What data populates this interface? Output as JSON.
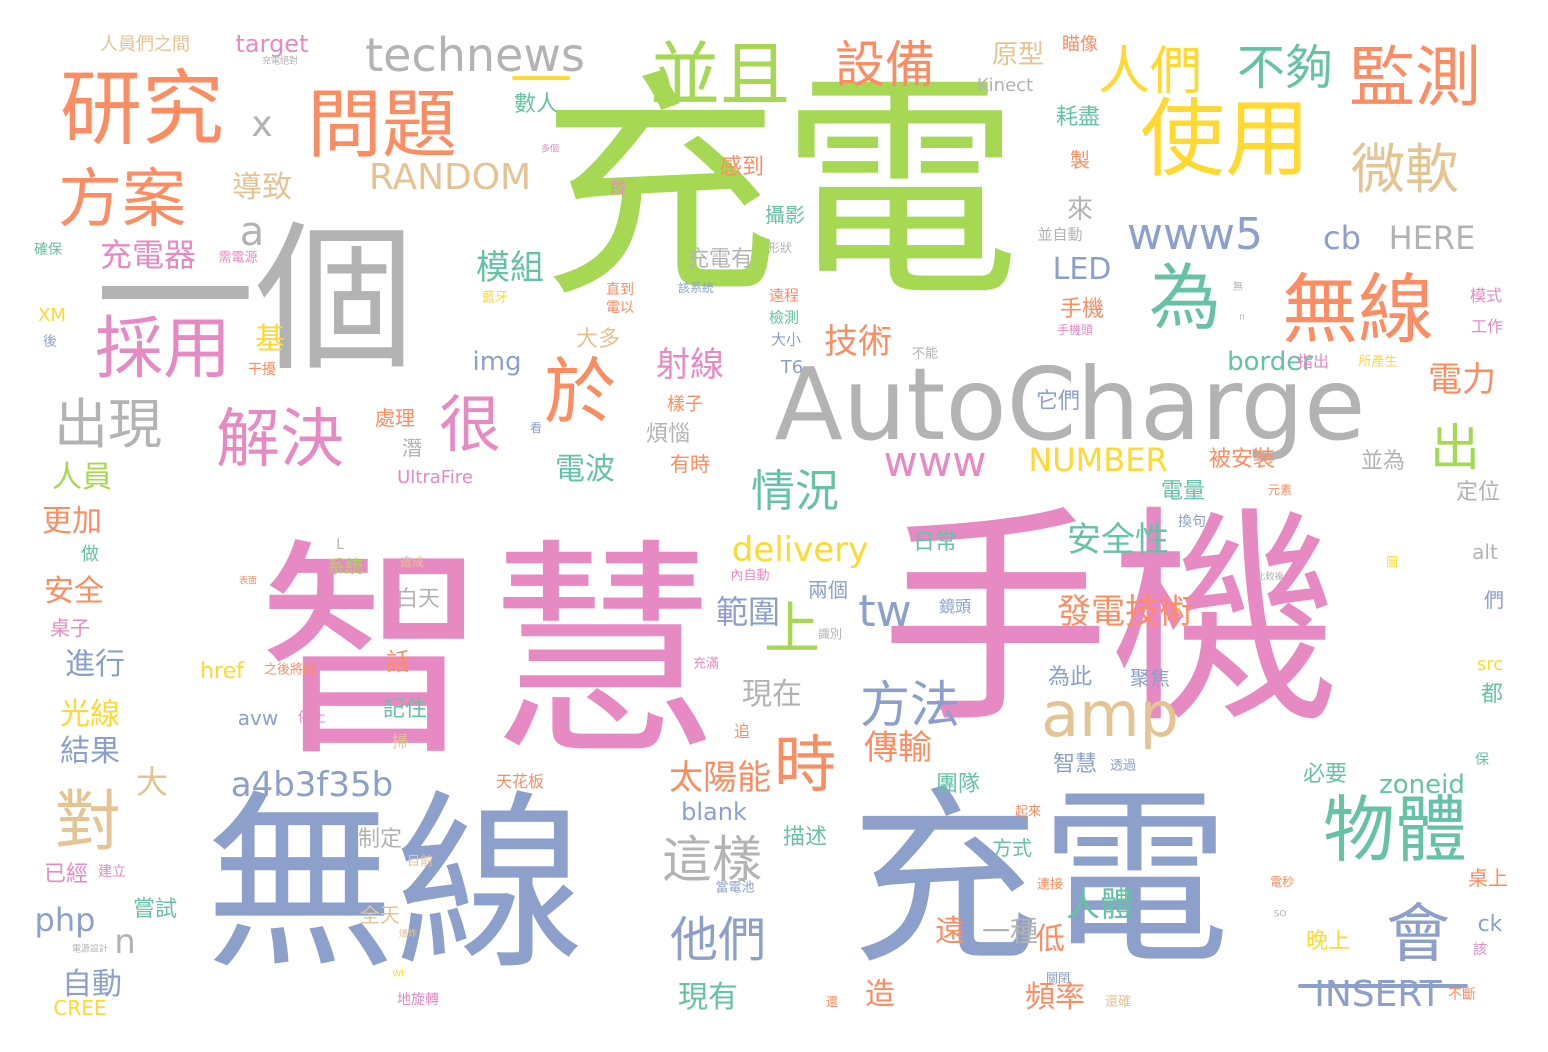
{
  "palette": {
    "green": "#a6d854",
    "pink": "#e78ac3",
    "blue": "#8da0cb",
    "grey": "#b3b3b3",
    "orange": "#fc8d62",
    "yellow": "#ffd92f",
    "teal": "#66c2a5",
    "tan": "#e5c494"
  },
  "words": [
    {
      "id": "w1",
      "text": "充電",
      "color": "green"
    },
    {
      "id": "w2",
      "text": "智慧",
      "color": "pink"
    },
    {
      "id": "w3",
      "text": "手機",
      "color": "pink"
    },
    {
      "id": "w4",
      "text": "無線",
      "color": "blue"
    },
    {
      "id": "w5",
      "text": "充電",
      "color": "blue"
    },
    {
      "id": "w6",
      "text": "一個",
      "color": "grey"
    },
    {
      "id": "w7",
      "text": "AutoCharge",
      "color": "grey"
    },
    {
      "id": "w8",
      "text": "研究",
      "color": "orange"
    },
    {
      "id": "w9",
      "text": "問題",
      "color": "orange"
    },
    {
      "id": "w10",
      "text": "使用",
      "color": "yellow"
    },
    {
      "id": "w11",
      "text": "並且",
      "color": "green"
    },
    {
      "id": "w12",
      "text": "監測",
      "color": "orange"
    },
    {
      "id": "w13",
      "text": "無線",
      "color": "orange"
    },
    {
      "id": "w14",
      "text": "方案",
      "color": "orange"
    },
    {
      "id": "w15",
      "text": "採用",
      "color": "pink"
    },
    {
      "id": "w16",
      "text": "解決",
      "color": "pink"
    },
    {
      "id": "w17",
      "text": "technews",
      "color": "grey"
    },
    {
      "id": "w18",
      "text": "設備",
      "color": "orange"
    },
    {
      "id": "w19",
      "text": "人們",
      "color": "yellow"
    },
    {
      "id": "w20",
      "text": "不夠",
      "color": "teal"
    },
    {
      "id": "w21",
      "text": "微軟",
      "color": "tan"
    },
    {
      "id": "w22",
      "text": "為",
      "color": "teal"
    },
    {
      "id": "w23",
      "text": "於",
      "color": "orange"
    },
    {
      "id": "w24",
      "text": "很",
      "color": "pink"
    },
    {
      "id": "w25",
      "text": "出現",
      "color": "grey"
    },
    {
      "id": "w26",
      "text": "amp",
      "color": "tan"
    },
    {
      "id": "w27",
      "text": "物體",
      "color": "teal"
    },
    {
      "id": "w28",
      "text": "會",
      "color": "blue"
    },
    {
      "id": "w29",
      "text": "對",
      "color": "tan"
    },
    {
      "id": "w30",
      "text": "時",
      "color": "orange"
    },
    {
      "id": "w31",
      "text": "方法",
      "color": "blue"
    },
    {
      "id": "w32",
      "text": "這樣",
      "color": "grey"
    },
    {
      "id": "w33",
      "text": "他們",
      "color": "blue"
    },
    {
      "id": "w34",
      "text": "情況",
      "color": "teal"
    },
    {
      "id": "w35",
      "text": "www5",
      "color": "blue"
    },
    {
      "id": "w36",
      "text": "www",
      "color": "pink"
    },
    {
      "id": "w37",
      "text": "RANDOM",
      "color": "tan"
    },
    {
      "id": "w38",
      "text": "a4b3f35b",
      "color": "blue"
    },
    {
      "id": "w39",
      "text": "delivery",
      "color": "yellow"
    },
    {
      "id": "w40",
      "text": "NUMBER",
      "color": "yellow"
    },
    {
      "id": "w41",
      "text": "INSERT",
      "color": "blue"
    },
    {
      "id": "w42",
      "text": "tw",
      "color": "blue"
    },
    {
      "id": "w43",
      "text": "上",
      "color": "green"
    },
    {
      "id": "w44",
      "text": "出",
      "color": "green"
    },
    {
      "id": "w45",
      "text": "cb",
      "color": "blue"
    },
    {
      "id": "w46",
      "text": "HERE",
      "color": "grey"
    },
    {
      "id": "w47",
      "text": "充電器",
      "color": "pink"
    },
    {
      "id": "w48",
      "text": "模組",
      "color": "teal"
    },
    {
      "id": "w49",
      "text": "LED",
      "color": "blue"
    },
    {
      "id": "w50",
      "text": "技術",
      "color": "orange"
    },
    {
      "id": "w51",
      "text": "射線",
      "color": "pink"
    },
    {
      "id": "w52",
      "text": "安全性",
      "color": "teal"
    },
    {
      "id": "w53",
      "text": "發電技術",
      "color": "orange"
    },
    {
      "id": "w54",
      "text": "範圍",
      "color": "blue"
    },
    {
      "id": "w55",
      "text": "太陽能",
      "color": "orange"
    },
    {
      "id": "w56",
      "text": "傳輸",
      "color": "orange"
    },
    {
      "id": "w57",
      "text": "人體",
      "color": "teal"
    },
    {
      "id": "w58",
      "text": "電力",
      "color": "orange"
    },
    {
      "id": "w59",
      "text": "導致",
      "color": "tan"
    },
    {
      "id": "w60",
      "text": "基",
      "color": "yellow"
    },
    {
      "id": "w61",
      "text": "人員",
      "color": "green"
    },
    {
      "id": "w62",
      "text": "更加",
      "color": "orange"
    },
    {
      "id": "w63",
      "text": "安全",
      "color": "orange"
    },
    {
      "id": "w64",
      "text": "進行",
      "color": "blue"
    },
    {
      "id": "w65",
      "text": "光線",
      "color": "yellow"
    },
    {
      "id": "w66",
      "text": "結果",
      "color": "blue"
    },
    {
      "id": "w67",
      "text": "php",
      "color": "blue"
    },
    {
      "id": "w68",
      "text": "自動",
      "color": "blue"
    },
    {
      "id": "w69",
      "text": "現有",
      "color": "teal"
    },
    {
      "id": "w70",
      "text": "頻率",
      "color": "orange"
    },
    {
      "id": "w71",
      "text": "低",
      "color": "orange"
    },
    {
      "id": "w72",
      "text": "遠",
      "color": "orange"
    },
    {
      "id": "w73",
      "text": "一種",
      "color": "grey"
    },
    {
      "id": "w74",
      "text": "造",
      "color": "orange"
    },
    {
      "id": "w75",
      "text": "img",
      "color": "blue"
    },
    {
      "id": "w76",
      "text": "a",
      "color": "grey"
    },
    {
      "id": "w77",
      "text": "x",
      "color": "grey"
    },
    {
      "id": "w78",
      "text": "n",
      "color": "grey"
    },
    {
      "id": "w79",
      "text": "大",
      "color": "tan"
    },
    {
      "id": "w80",
      "text": "電波",
      "color": "teal"
    },
    {
      "id": "w81",
      "text": "現在",
      "color": "grey"
    },
    {
      "id": "w82",
      "text": "border",
      "color": "teal"
    },
    {
      "id": "w83",
      "text": "zoneid",
      "color": "teal"
    },
    {
      "id": "w84",
      "text": "blank",
      "color": "blue"
    },
    {
      "id": "w85",
      "text": "target",
      "color": "pink"
    },
    {
      "id": "w86",
      "text": "Kinect",
      "color": "grey"
    },
    {
      "id": "w87",
      "text": "原型",
      "color": "tan"
    },
    {
      "id": "w88",
      "text": "數人",
      "color": "teal"
    },
    {
      "id": "w89",
      "text": "耗盡",
      "color": "teal"
    },
    {
      "id": "w90",
      "text": "感到",
      "color": "orange"
    },
    {
      "id": "w91",
      "text": "攝影",
      "color": "teal"
    },
    {
      "id": "w92",
      "text": "來",
      "color": "grey"
    },
    {
      "id": "w93",
      "text": "手機",
      "color": "orange"
    },
    {
      "id": "w94",
      "text": "充電有",
      "color": "grey"
    },
    {
      "id": "w95",
      "text": "大多",
      "color": "tan"
    },
    {
      "id": "w96",
      "text": "它們",
      "color": "blue"
    },
    {
      "id": "w97",
      "text": "處理",
      "color": "orange"
    },
    {
      "id": "w98",
      "text": "煩惱",
      "color": "grey"
    },
    {
      "id": "w99",
      "text": "有時",
      "color": "orange"
    },
    {
      "id": "w100",
      "text": "被安裝",
      "color": "orange"
    },
    {
      "id": "w101",
      "text": "並為",
      "color": "grey"
    },
    {
      "id": "w102",
      "text": "定位",
      "color": "grey"
    },
    {
      "id": "w103",
      "text": "電量",
      "color": "teal"
    },
    {
      "id": "w104",
      "text": "日常",
      "color": "teal"
    },
    {
      "id": "w105",
      "text": "兩個",
      "color": "blue"
    },
    {
      "id": "w106",
      "text": "白天",
      "color": "grey"
    },
    {
      "id": "w107",
      "text": "話",
      "color": "orange"
    },
    {
      "id": "w108",
      "text": "記住",
      "color": "teal"
    },
    {
      "id": "w109",
      "text": "為此",
      "color": "blue"
    },
    {
      "id": "w110",
      "text": "聚焦",
      "color": "blue"
    },
    {
      "id": "w111",
      "text": "智慧",
      "color": "blue"
    },
    {
      "id": "w112",
      "text": "團隊",
      "color": "teal"
    },
    {
      "id": "w113",
      "text": "必要",
      "color": "teal"
    },
    {
      "id": "w114",
      "text": "描述",
      "color": "teal"
    },
    {
      "id": "w115",
      "text": "制定",
      "color": "grey"
    },
    {
      "id": "w116",
      "text": "方式",
      "color": "teal"
    },
    {
      "id": "w117",
      "text": "已經",
      "color": "pink"
    },
    {
      "id": "w118",
      "text": "嘗試",
      "color": "teal"
    },
    {
      "id": "w119",
      "text": "全天",
      "color": "tan"
    },
    {
      "id": "w120",
      "text": "晚上",
      "color": "yellow"
    },
    {
      "id": "w121",
      "text": "桌上",
      "color": "orange"
    },
    {
      "id": "w122",
      "text": "ck",
      "color": "blue"
    },
    {
      "id": "w123",
      "text": "CREE",
      "color": "yellow"
    },
    {
      "id": "w124",
      "text": "href",
      "color": "yellow"
    },
    {
      "id": "w125",
      "text": "avw",
      "color": "blue"
    },
    {
      "id": "w126",
      "text": "UltraFire",
      "color": "pink"
    },
    {
      "id": "w127",
      "text": "T6",
      "color": "blue"
    },
    {
      "id": "w128",
      "text": "XM",
      "color": "yellow"
    },
    {
      "id": "w129",
      "text": "alt",
      "color": "grey"
    },
    {
      "id": "w130",
      "text": "src",
      "color": "yellow"
    },
    {
      "id": "w131",
      "text": "都",
      "color": "teal"
    },
    {
      "id": "w132",
      "text": "們",
      "color": "blue"
    },
    {
      "id": "w133",
      "text": "人員們之間",
      "color": "tan"
    },
    {
      "id": "w134",
      "text": "瞄像",
      "color": "orange"
    },
    {
      "id": "w135",
      "text": "製",
      "color": "orange"
    },
    {
      "id": "w136",
      "text": "並自動",
      "color": "grey"
    },
    {
      "id": "w137",
      "text": "模式",
      "color": "pink"
    },
    {
      "id": "w138",
      "text": "工作",
      "color": "pink"
    },
    {
      "id": "w139",
      "text": "遠程",
      "color": "orange"
    },
    {
      "id": "w140",
      "text": "檢測",
      "color": "teal"
    },
    {
      "id": "w141",
      "text": "大小",
      "color": "blue"
    },
    {
      "id": "w142",
      "text": "指出",
      "color": "pink"
    },
    {
      "id": "w143",
      "text": "所產生",
      "color": "yellow"
    },
    {
      "id": "w144",
      "text": "樣子",
      "color": "orange"
    },
    {
      "id": "w145",
      "text": "潛",
      "color": "grey"
    },
    {
      "id": "w146",
      "text": "做",
      "color": "teal"
    },
    {
      "id": "w147",
      "text": "系統",
      "color": "green"
    },
    {
      "id": "w148",
      "text": "桌子",
      "color": "pink"
    },
    {
      "id": "w149",
      "text": "後",
      "color": "blue"
    },
    {
      "id": "w150",
      "text": "確保",
      "color": "teal"
    },
    {
      "id": "w151",
      "text": "直到",
      "color": "orange"
    },
    {
      "id": "w152",
      "text": "電以",
      "color": "orange"
    },
    {
      "id": "w153",
      "text": "藍牙",
      "color": "yellow"
    },
    {
      "id": "w154",
      "text": "干擾",
      "color": "orange"
    },
    {
      "id": "w155",
      "text": "天花板",
      "color": "orange"
    },
    {
      "id": "w156",
      "text": "掃",
      "color": "tan"
    },
    {
      "id": "w157",
      "text": "追",
      "color": "orange"
    },
    {
      "id": "w158",
      "text": "停止",
      "color": "pink"
    },
    {
      "id": "w159",
      "text": "之後將說",
      "color": "orange"
    },
    {
      "id": "w160",
      "text": "充滿",
      "color": "pink"
    },
    {
      "id": "w161",
      "text": "識別",
      "color": "grey"
    },
    {
      "id": "w162",
      "text": "鏡頭",
      "color": "blue"
    },
    {
      "id": "w163",
      "text": "內自動",
      "color": "pink"
    },
    {
      "id": "w164",
      "text": "換句",
      "color": "blue"
    },
    {
      "id": "w165",
      "text": "元素",
      "color": "orange"
    },
    {
      "id": "w166",
      "text": "透過",
      "color": "blue"
    },
    {
      "id": "w167",
      "text": "起來",
      "color": "orange"
    },
    {
      "id": "w168",
      "text": "當電池",
      "color": "blue"
    },
    {
      "id": "w169",
      "text": "目前",
      "color": "tan"
    },
    {
      "id": "w170",
      "text": "建立",
      "color": "pink"
    },
    {
      "id": "w171",
      "text": "不斷",
      "color": "orange"
    },
    {
      "id": "w172",
      "text": "連接",
      "color": "orange"
    },
    {
      "id": "w173",
      "text": "電秒",
      "color": "orange"
    },
    {
      "id": "w174",
      "text": "該",
      "color": "pink"
    },
    {
      "id": "w175",
      "text": "保",
      "color": "teal"
    },
    {
      "id": "w176",
      "text": "地旋轉",
      "color": "pink"
    },
    {
      "id": "w177",
      "text": "還",
      "color": "orange"
    },
    {
      "id": "w178",
      "text": "還確",
      "color": "tan"
    },
    {
      "id": "w179",
      "text": "關閉",
      "color": "blue"
    },
    {
      "id": "w180",
      "text": "不能",
      "color": "grey"
    },
    {
      "id": "w181",
      "text": "形狀",
      "color": "grey"
    },
    {
      "id": "w182",
      "text": "需電源",
      "color": "pink"
    },
    {
      "id": "w183",
      "text": "手機頭",
      "color": "pink"
    },
    {
      "id": "w184",
      "text": "無",
      "color": "grey"
    },
    {
      "id": "w185",
      "text": "該系統",
      "color": "blue"
    },
    {
      "id": "w186",
      "text": "蹤",
      "color": "pink"
    },
    {
      "id": "w187",
      "text": "看",
      "color": "blue"
    },
    {
      "id": "w188",
      "text": "造成",
      "color": "tan"
    },
    {
      "id": "w189",
      "text": "圖",
      "color": "yellow"
    },
    {
      "id": "w190",
      "text": "L",
      "color": "grey"
    },
    {
      "id": "w191",
      "text": "多個",
      "color": "pink"
    },
    {
      "id": "w192",
      "text": "表面",
      "color": "orange"
    },
    {
      "id": "w193",
      "text": "充電絕對",
      "color": "grey"
    },
    {
      "id": "w194",
      "text": "比較複",
      "color": "grey"
    },
    {
      "id": "w195",
      "text": "爆炸",
      "color": "tan"
    },
    {
      "id": "w196",
      "text": "WI",
      "color": "yellow"
    },
    {
      "id": "w197",
      "text": "電源設計",
      "color": "grey"
    },
    {
      "id": "w198",
      "text": "n",
      "color": "grey"
    },
    {
      "id": "w199",
      "text": "SO",
      "color": "grey"
    }
  ]
}
